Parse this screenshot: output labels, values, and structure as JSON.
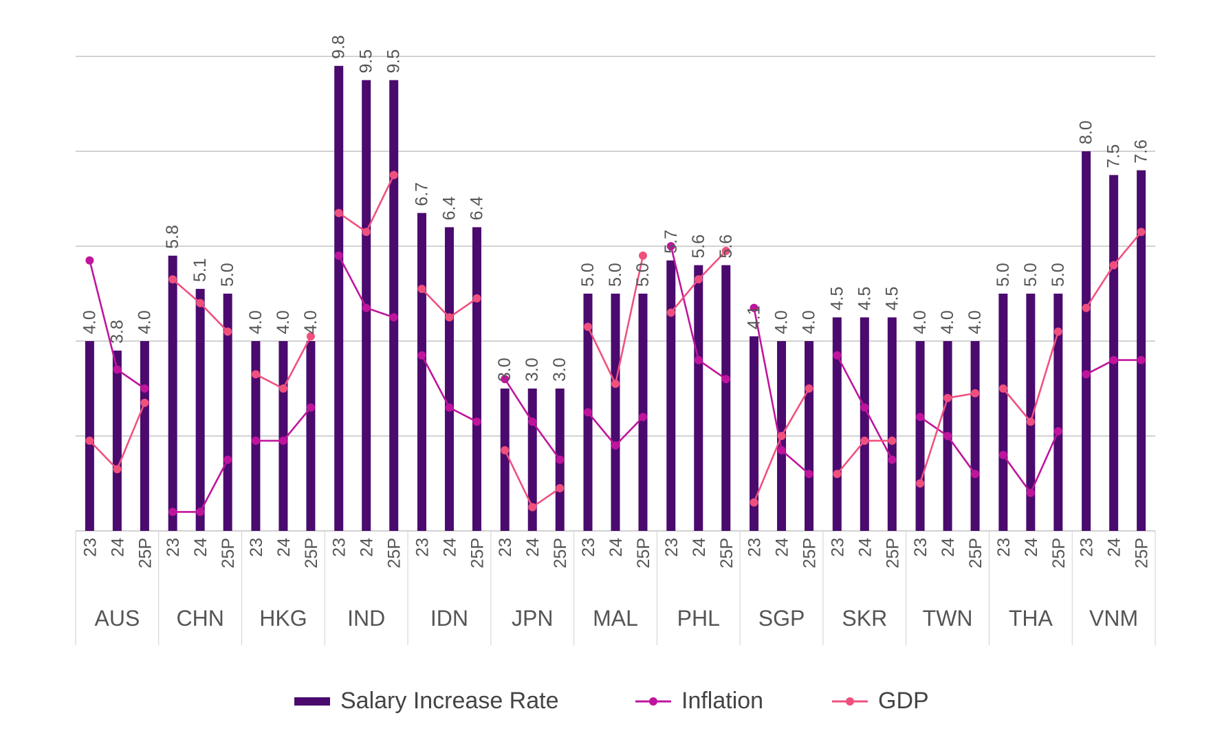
{
  "chart_data": {
    "type": "bar",
    "categories": [
      "AUS",
      "CHN",
      "HKG",
      "IND",
      "IDN",
      "JPN",
      "MAL",
      "PHL",
      "SGP",
      "SKR",
      "TWN",
      "THA",
      "VNM"
    ],
    "periods": [
      "23",
      "24",
      "25P"
    ],
    "series": [
      {
        "name": "Salary Increase Rate",
        "type": "bar",
        "color": "#4a0a6e",
        "values": [
          [
            4.0,
            3.8,
            4.0
          ],
          [
            5.8,
            5.1,
            5.0
          ],
          [
            4.0,
            4.0,
            4.0
          ],
          [
            9.8,
            9.5,
            9.5
          ],
          [
            6.7,
            6.4,
            6.4
          ],
          [
            3.0,
            3.0,
            3.0
          ],
          [
            5.0,
            5.0,
            5.0
          ],
          [
            5.7,
            5.6,
            5.6
          ],
          [
            4.1,
            4.0,
            4.0
          ],
          [
            4.5,
            4.5,
            4.5
          ],
          [
            4.0,
            4.0,
            4.0
          ],
          [
            5.0,
            5.0,
            5.0
          ],
          [
            8.0,
            7.5,
            7.6
          ]
        ],
        "labels": [
          [
            "4.0",
            "3.8",
            "4.0"
          ],
          [
            "5.8",
            "5.1",
            "5.0"
          ],
          [
            "4.0",
            "4.0",
            "4.0"
          ],
          [
            "9.8",
            "9.5",
            "9.5"
          ],
          [
            "6.7",
            "6.4",
            "6.4"
          ],
          [
            "3.0",
            "3.0",
            "3.0"
          ],
          [
            "5.0",
            "5.0",
            "5.0"
          ],
          [
            "5.7",
            "5.6",
            "5.6"
          ],
          [
            "4.1",
            "4.0",
            "4.0"
          ],
          [
            "4.5",
            "4.5",
            "4.5"
          ],
          [
            "4.0",
            "4.0",
            "4.0"
          ],
          [
            "5.0",
            "5.0",
            "5.0"
          ],
          [
            "8.0",
            "7.5",
            "7.6"
          ]
        ]
      },
      {
        "name": "Inflation",
        "type": "line",
        "color": "#c0149c",
        "values": [
          [
            5.7,
            3.4,
            3.0
          ],
          [
            0.4,
            0.4,
            1.5
          ],
          [
            1.9,
            1.9,
            2.6
          ],
          [
            5.8,
            4.7,
            4.5
          ],
          [
            3.7,
            2.6,
            2.3
          ],
          [
            3.2,
            2.3,
            1.5
          ],
          [
            2.5,
            1.8,
            2.4
          ],
          [
            6.0,
            3.6,
            3.2
          ],
          [
            4.7,
            1.7,
            1.2
          ],
          [
            3.7,
            2.6,
            1.5
          ],
          [
            2.4,
            2.0,
            1.2
          ],
          [
            1.6,
            0.8,
            2.1
          ],
          [
            3.3,
            3.6,
            3.6
          ]
        ]
      },
      {
        "name": "GDP",
        "type": "line",
        "color": "#f0507e",
        "values": [
          [
            1.9,
            1.3,
            2.7
          ],
          [
            5.3,
            4.8,
            4.2
          ],
          [
            3.3,
            3.0,
            4.1
          ],
          [
            6.7,
            6.3,
            7.5
          ],
          [
            5.1,
            4.5,
            4.9
          ],
          [
            1.7,
            0.5,
            0.9
          ],
          [
            4.3,
            3.1,
            5.8
          ],
          [
            4.6,
            5.3,
            5.9
          ],
          [
            0.6,
            2.0,
            3.0
          ],
          [
            1.2,
            1.9,
            1.9
          ],
          [
            1.0,
            2.8,
            2.9
          ],
          [
            3.0,
            2.3,
            4.2
          ],
          [
            4.7,
            5.6,
            6.3
          ]
        ]
      }
    ],
    "ylim": [
      0,
      10
    ],
    "grid": true,
    "legend_position": "bottom",
    "title": "",
    "xlabel": "",
    "ylabel": ""
  }
}
